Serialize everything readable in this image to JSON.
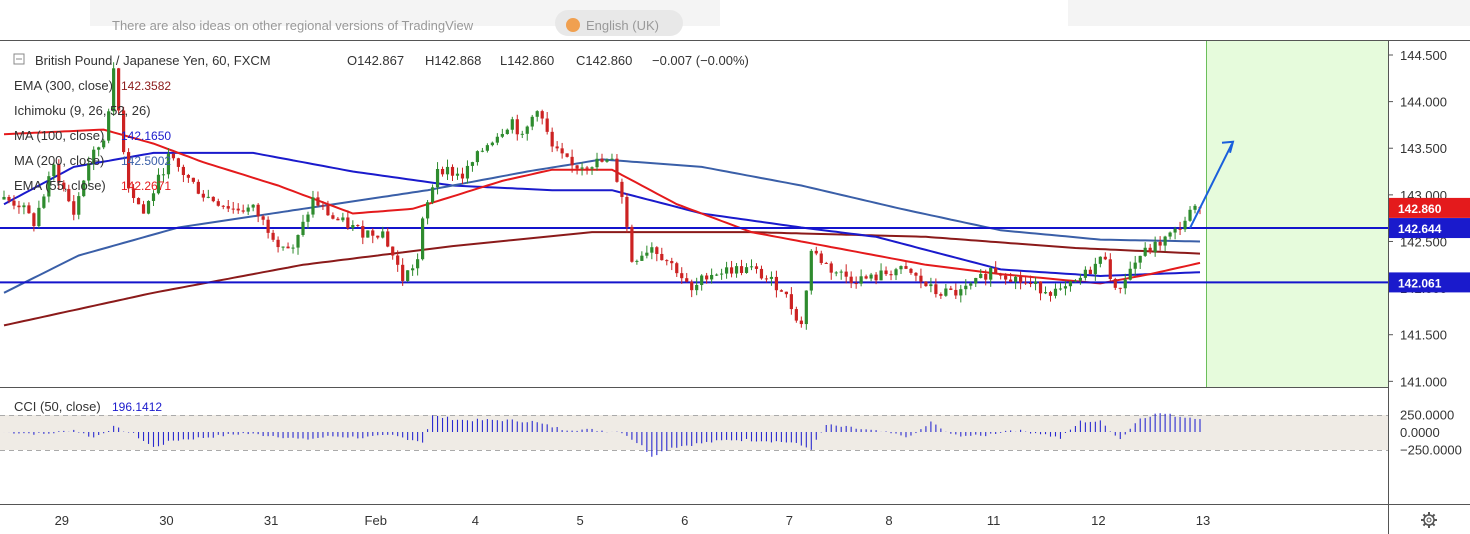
{
  "banner": {
    "text": "There are also ideas on other regional versions of TradingView",
    "pill_text": "English (UK)"
  },
  "legend": {
    "symbol": "British Pound / Japanese Yen, 60, FXCM",
    "ohlc": {
      "o": "O142.867",
      "h": "H142.868",
      "l": "L142.860",
      "c": "C142.860",
      "chg": "−0.007 (−0.00%)"
    },
    "indicators": [
      {
        "label": "EMA (300, close)",
        "value": "142.3582",
        "color": "#8b1a1a"
      },
      {
        "label": "Ichimoku (9, 26, 52, 26)",
        "value": "",
        "color": "#bbbbbb"
      },
      {
        "label": "MA (100, close)",
        "value": "142.1650",
        "color": "#1a1acc"
      },
      {
        "label": "MA (200, close)",
        "value": "142.5002",
        "color": "#3a5fa8"
      },
      {
        "label": "EMA (55, close)",
        "value": "142.2671",
        "color": "#e41a1c"
      }
    ],
    "cci": {
      "label": "CCI (50, close)",
      "value": "196.1412",
      "color": "#1a1acc"
    }
  },
  "price_axis": {
    "ticks": [
      "144.500",
      "144.000",
      "143.500",
      "143.000",
      "142.500",
      "142.000",
      "141.500",
      "141.000"
    ]
  },
  "cci_axis": {
    "ticks": [
      "250.0000",
      "0.0000",
      "−250.0000"
    ]
  },
  "badges": [
    {
      "value": "142.860",
      "color": "#e41a1c"
    },
    {
      "value": "142.644",
      "color": "#1a1acc"
    },
    {
      "value": "142.061",
      "color": "#1a1acc"
    }
  ],
  "time_axis": {
    "labels": [
      "29",
      "30",
      "31",
      "Feb",
      "4",
      "5",
      "6",
      "7",
      "8",
      "11",
      "12",
      "13"
    ]
  },
  "settings_icon": "gear-icon",
  "chart_data": {
    "type": "candlestick",
    "symbol": "GBPJPY",
    "timeframe": "60",
    "ylim": [
      141.0,
      144.6
    ],
    "horizontal_lines": [
      142.644,
      142.061
    ],
    "projection_arrow": {
      "from": 142.644,
      "to": 143.57
    },
    "last_close": 142.86,
    "price_path": [
      [
        0,
        142.95
      ],
      [
        3,
        142.9
      ],
      [
        6,
        142.7
      ],
      [
        10,
        143.3
      ],
      [
        14,
        142.8
      ],
      [
        17,
        143.35
      ],
      [
        20,
        143.6
      ],
      [
        22,
        144.3
      ],
      [
        25,
        143.1
      ],
      [
        28,
        142.8
      ],
      [
        33,
        143.4
      ],
      [
        40,
        143.0
      ],
      [
        46,
        142.85
      ],
      [
        50,
        142.85
      ],
      [
        55,
        142.5
      ],
      [
        58,
        142.4
      ],
      [
        62,
        142.95
      ],
      [
        66,
        142.75
      ],
      [
        72,
        142.6
      ],
      [
        76,
        142.6
      ],
      [
        80,
        142.1
      ],
      [
        83,
        142.3
      ],
      [
        84,
        142.7
      ],
      [
        87,
        143.3
      ],
      [
        92,
        143.2
      ],
      [
        97,
        143.55
      ],
      [
        102,
        143.8
      ],
      [
        104,
        143.6
      ],
      [
        107,
        143.95
      ],
      [
        110,
        143.5
      ],
      [
        114,
        143.3
      ],
      [
        119,
        143.35
      ],
      [
        122,
        143.35
      ],
      [
        124,
        143.0
      ],
      [
        126,
        142.3
      ],
      [
        130,
        142.45
      ],
      [
        135,
        142.2
      ],
      [
        138,
        141.95
      ],
      [
        141,
        142.15
      ],
      [
        146,
        142.2
      ],
      [
        150,
        142.2
      ],
      [
        153,
        142.1
      ],
      [
        156,
        142.0
      ],
      [
        158,
        141.8
      ],
      [
        160,
        141.6
      ],
      [
        162,
        142.4
      ],
      [
        166,
        142.2
      ],
      [
        170,
        142.1
      ],
      [
        174,
        142.1
      ],
      [
        179,
        142.2
      ],
      [
        182,
        142.15
      ],
      [
        187,
        141.95
      ],
      [
        192,
        141.95
      ],
      [
        195,
        142.05
      ],
      [
        198,
        142.2
      ],
      [
        201,
        142.15
      ],
      [
        205,
        142.05
      ],
      [
        208,
        142.0
      ],
      [
        212,
        141.95
      ],
      [
        215,
        142.05
      ],
      [
        218,
        142.2
      ],
      [
        221,
        142.35
      ],
      [
        223,
        141.95
      ],
      [
        226,
        142.2
      ],
      [
        228,
        142.35
      ],
      [
        231,
        142.45
      ],
      [
        235,
        142.6
      ],
      [
        238,
        142.8
      ],
      [
        240,
        142.87
      ]
    ],
    "ma_lines": [
      {
        "name": "EMA (300, close)",
        "color": "#8b1a1a",
        "points": [
          [
            0,
            141.6
          ],
          [
            30,
            141.95
          ],
          [
            60,
            142.25
          ],
          [
            90,
            142.45
          ],
          [
            118,
            142.6
          ],
          [
            150,
            142.6
          ],
          [
            185,
            142.55
          ],
          [
            215,
            142.43
          ],
          [
            240,
            142.37
          ]
        ]
      },
      {
        "name": "MA (100, close)",
        "color": "#1a1acc",
        "points": [
          [
            0,
            142.9
          ],
          [
            14,
            143.3
          ],
          [
            30,
            143.45
          ],
          [
            50,
            143.45
          ],
          [
            70,
            143.25
          ],
          [
            90,
            143.1
          ],
          [
            110,
            143.05
          ],
          [
            122,
            143.05
          ],
          [
            140,
            142.8
          ],
          [
            160,
            142.65
          ],
          [
            175,
            142.55
          ],
          [
            200,
            142.2
          ],
          [
            220,
            142.13
          ],
          [
            240,
            142.17
          ]
        ]
      },
      {
        "name": "MA (200, close)",
        "color": "#3a5fa8",
        "points": [
          [
            0,
            141.95
          ],
          [
            15,
            142.35
          ],
          [
            35,
            142.65
          ],
          [
            60,
            142.85
          ],
          [
            85,
            143.05
          ],
          [
            105,
            143.25
          ],
          [
            120,
            143.38
          ],
          [
            140,
            143.3
          ],
          [
            160,
            143.1
          ],
          [
            180,
            142.85
          ],
          [
            200,
            142.62
          ],
          [
            220,
            142.52
          ],
          [
            240,
            142.5
          ]
        ]
      },
      {
        "name": "EMA (55, close)",
        "color": "#e41a1c",
        "points": [
          [
            0,
            143.65
          ],
          [
            20,
            143.7
          ],
          [
            30,
            143.55
          ],
          [
            40,
            143.35
          ],
          [
            55,
            143.1
          ],
          [
            70,
            142.8
          ],
          [
            82,
            142.85
          ],
          [
            100,
            143.15
          ],
          [
            110,
            143.27
          ],
          [
            122,
            143.27
          ],
          [
            135,
            142.9
          ],
          [
            150,
            142.6
          ],
          [
            165,
            142.45
          ],
          [
            185,
            142.25
          ],
          [
            200,
            142.15
          ],
          [
            220,
            142.05
          ],
          [
            230,
            142.15
          ],
          [
            240,
            142.27
          ]
        ]
      }
    ],
    "cci_ylim": [
      -400,
      300
    ],
    "cci_path": [
      [
        0,
        0
      ],
      [
        8,
        -30
      ],
      [
        14,
        30
      ],
      [
        18,
        -80
      ],
      [
        22,
        70
      ],
      [
        26,
        -30
      ],
      [
        30,
        -220
      ],
      [
        34,
        -120
      ],
      [
        40,
        -80
      ],
      [
        48,
        -20
      ],
      [
        55,
        -60
      ],
      [
        60,
        -110
      ],
      [
        66,
        -60
      ],
      [
        72,
        -80
      ],
      [
        78,
        -50
      ],
      [
        84,
        -140
      ],
      [
        86,
        230
      ],
      [
        92,
        170
      ],
      [
        100,
        170
      ],
      [
        106,
        150
      ],
      [
        112,
        40
      ],
      [
        118,
        30
      ],
      [
        124,
        0
      ],
      [
        128,
        -200
      ],
      [
        130,
        -340
      ],
      [
        134,
        -220
      ],
      [
        140,
        -160
      ],
      [
        146,
        -110
      ],
      [
        152,
        -120
      ],
      [
        158,
        -150
      ],
      [
        162,
        -240
      ],
      [
        165,
        100
      ],
      [
        170,
        60
      ],
      [
        176,
        0
      ],
      [
        182,
        -70
      ],
      [
        186,
        140
      ],
      [
        190,
        -40
      ],
      [
        196,
        -60
      ],
      [
        202,
        30
      ],
      [
        208,
        -20
      ],
      [
        212,
        -90
      ],
      [
        216,
        150
      ],
      [
        220,
        150
      ],
      [
        224,
        -100
      ],
      [
        228,
        200
      ],
      [
        232,
        270
      ],
      [
        236,
        220
      ],
      [
        240,
        200
      ]
    ],
    "x_tick_labels": [
      "29",
      "30",
      "31",
      "Feb",
      "4",
      "5",
      "6",
      "7",
      "8",
      "11",
      "12",
      "13"
    ]
  }
}
